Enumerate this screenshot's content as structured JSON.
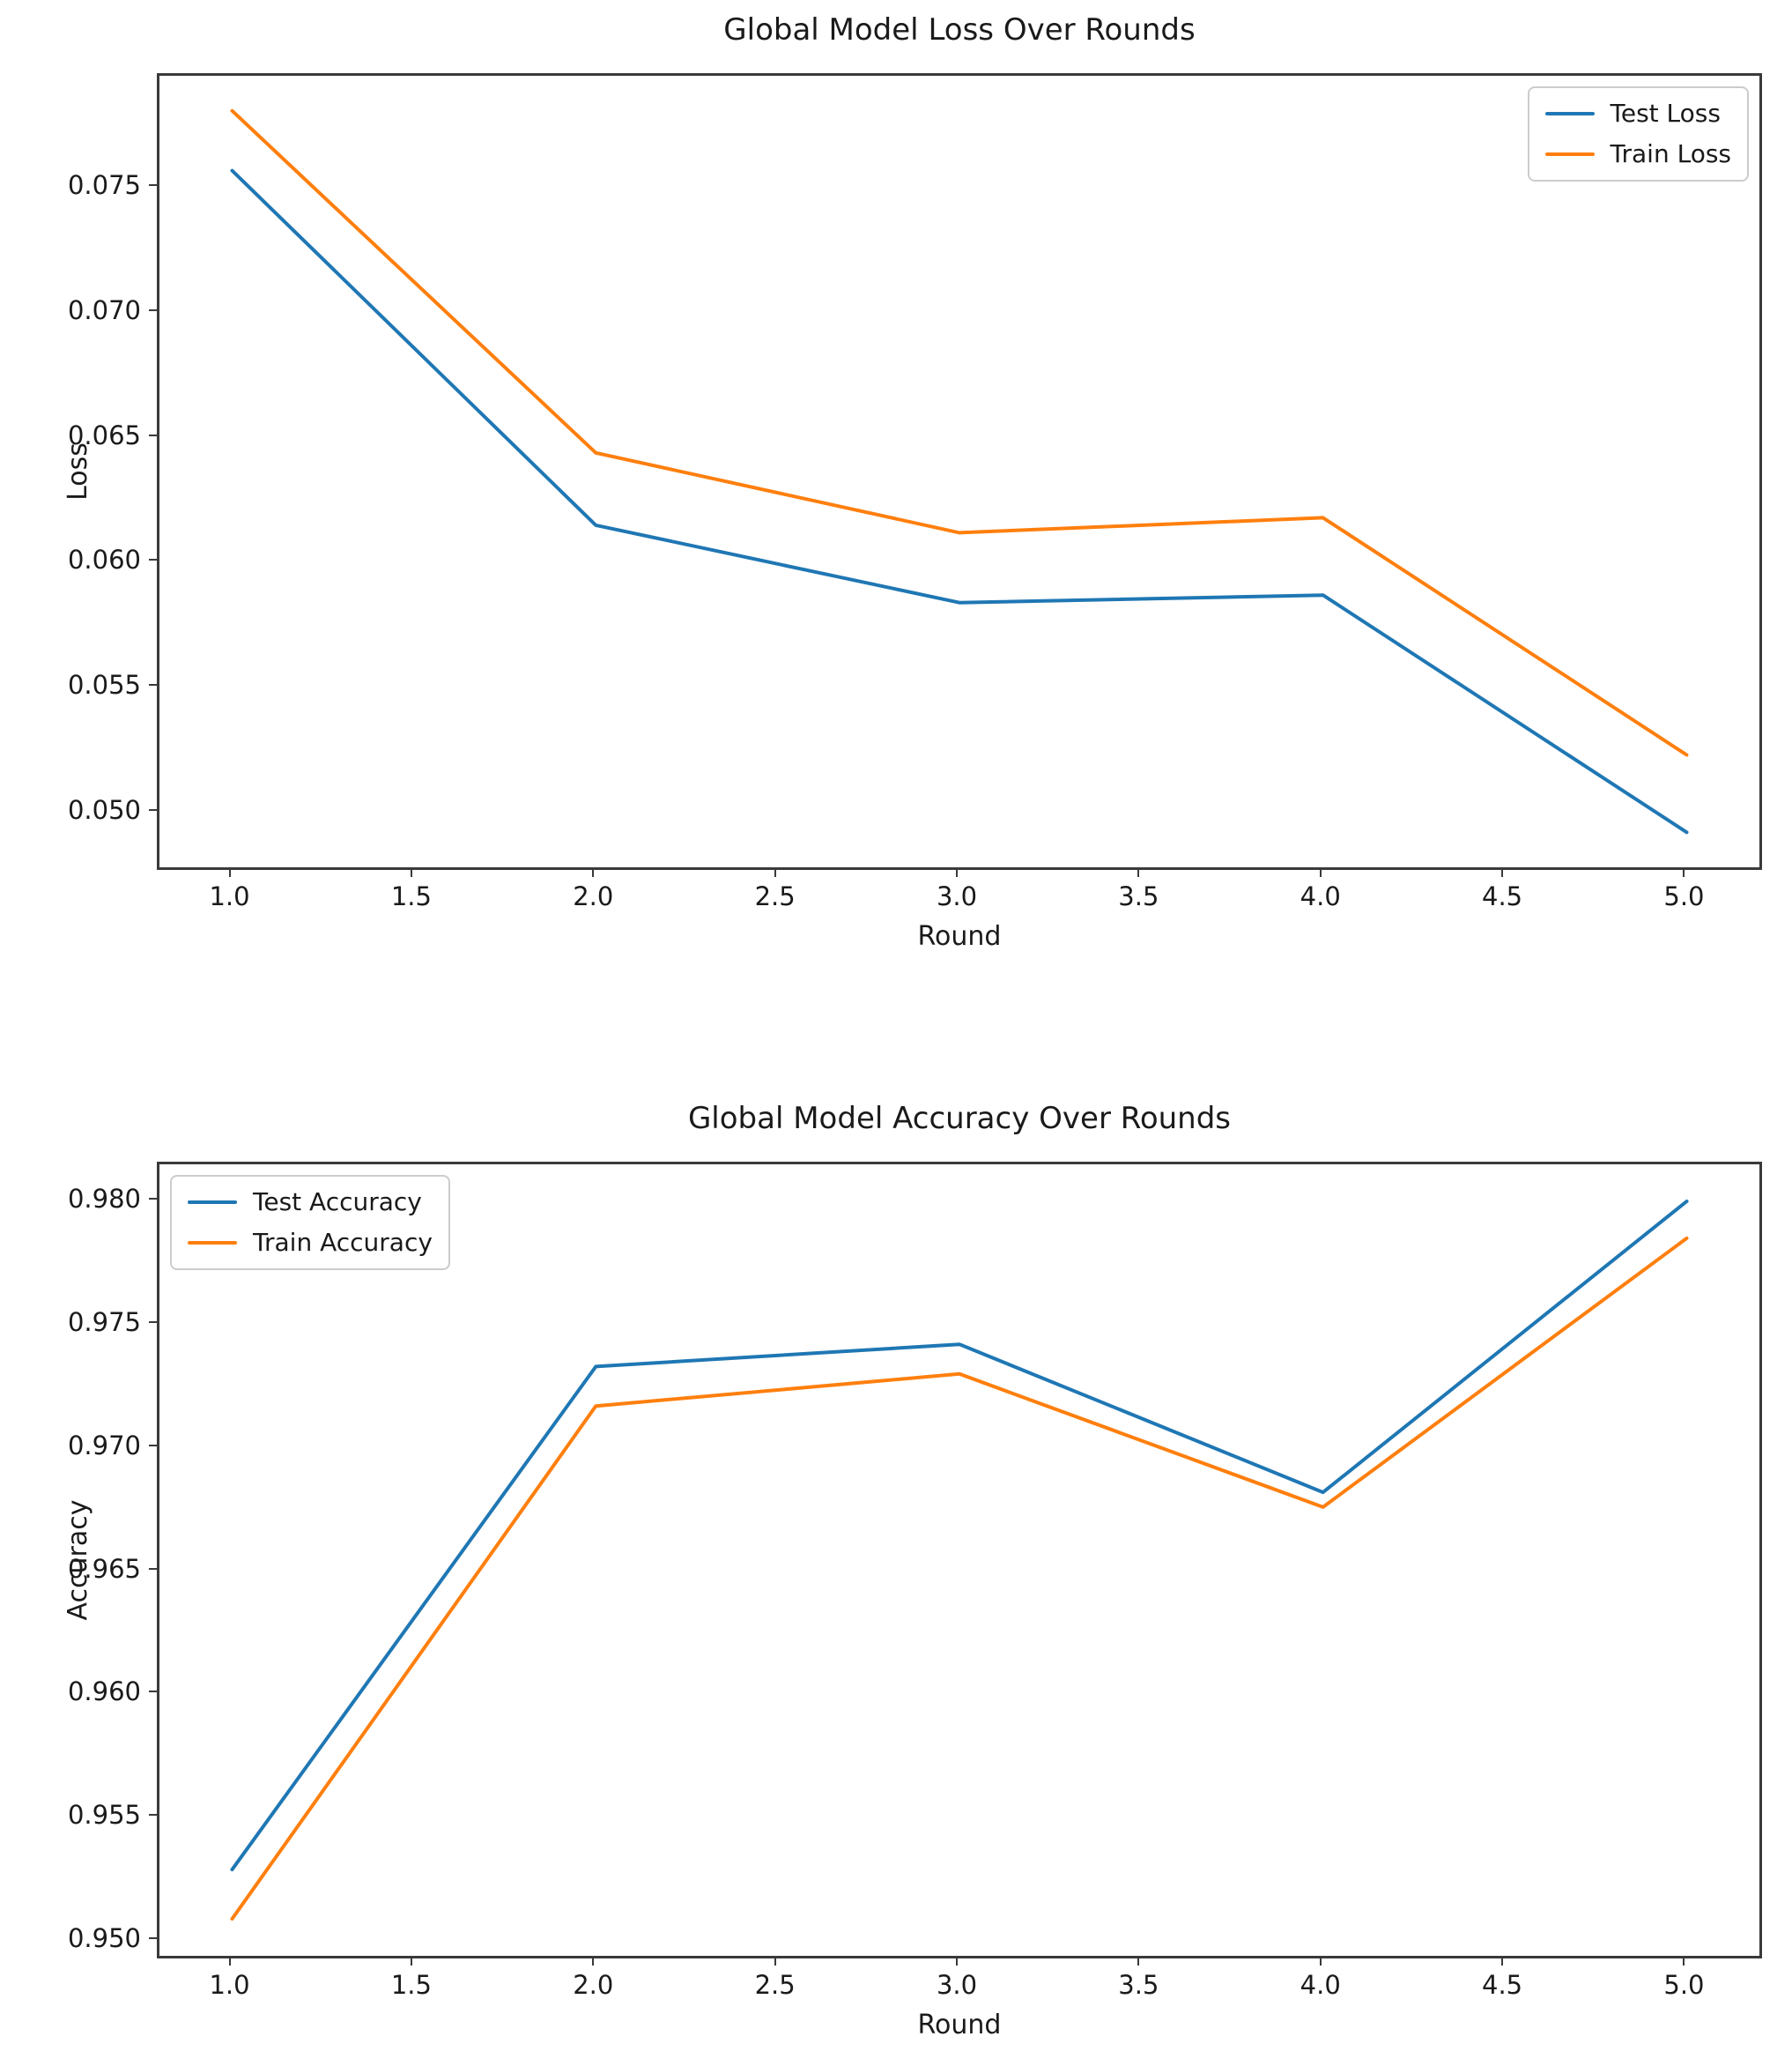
{
  "figure": {
    "background": "#ffffff",
    "text_color": "#1a1a1a",
    "spine_color": "#3a3a3a",
    "series_colors": {
      "test": "#1f77b4",
      "train": "#ff7f0e"
    }
  },
  "chart_data": [
    {
      "type": "line",
      "title": "Global Model Loss Over Rounds",
      "xlabel": "Round",
      "ylabel": "Loss",
      "x": [
        1,
        2,
        3,
        4,
        5
      ],
      "series": [
        {
          "name": "Test Loss",
          "color": "#1f77b4",
          "values": [
            0.0757,
            0.0615,
            0.0584,
            0.0587,
            0.0492
          ]
        },
        {
          "name": "Train Loss",
          "color": "#ff7f0e",
          "values": [
            0.0781,
            0.0644,
            0.0612,
            0.0618,
            0.0523
          ]
        }
      ],
      "xlim": [
        0.8,
        5.2
      ],
      "ylim": [
        0.0478,
        0.0795
      ],
      "x_tick_values": [
        1.0,
        1.5,
        2.0,
        2.5,
        3.0,
        3.5,
        4.0,
        4.5,
        5.0
      ],
      "x_tick_labels": [
        "1.0",
        "1.5",
        "2.0",
        "2.5",
        "3.0",
        "3.5",
        "4.0",
        "4.5",
        "5.0"
      ],
      "y_tick_values": [
        0.05,
        0.055,
        0.06,
        0.065,
        0.07,
        0.075
      ],
      "y_tick_labels": [
        "0.050",
        "0.055",
        "0.060",
        "0.065",
        "0.070",
        "0.075"
      ],
      "legend_position": "upper-right",
      "grid": false
    },
    {
      "type": "line",
      "title": "Global Model Accuracy Over Rounds",
      "xlabel": "Round",
      "ylabel": "Accuracy",
      "x": [
        1,
        2,
        3,
        4,
        5
      ],
      "series": [
        {
          "name": "Test Accuracy",
          "color": "#1f77b4",
          "values": [
            0.9529,
            0.9733,
            0.9742,
            0.9682,
            0.98
          ]
        },
        {
          "name": "Train Accuracy",
          "color": "#ff7f0e",
          "values": [
            0.9509,
            0.9717,
            0.973,
            0.9676,
            0.9785
          ]
        }
      ],
      "xlim": [
        0.8,
        5.2
      ],
      "ylim": [
        0.9494,
        0.9815
      ],
      "x_tick_values": [
        1.0,
        1.5,
        2.0,
        2.5,
        3.0,
        3.5,
        4.0,
        4.5,
        5.0
      ],
      "x_tick_labels": [
        "1.0",
        "1.5",
        "2.0",
        "2.5",
        "3.0",
        "3.5",
        "4.0",
        "4.5",
        "5.0"
      ],
      "y_tick_values": [
        0.95,
        0.955,
        0.96,
        0.965,
        0.97,
        0.975,
        0.98
      ],
      "y_tick_labels": [
        "0.950",
        "0.955",
        "0.960",
        "0.965",
        "0.970",
        "0.975",
        "0.980"
      ],
      "legend_position": "upper-left",
      "grid": false
    }
  ]
}
